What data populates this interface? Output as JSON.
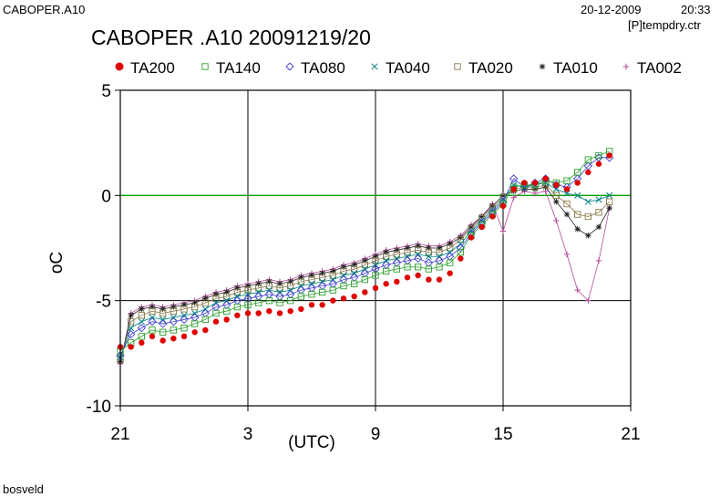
{
  "header": {
    "file_name": "CABOPER.A10",
    "date": "20-12-2009",
    "time": "20:33",
    "product": "[P]tempdry.ctr"
  },
  "footer": {
    "station": "bosveld"
  },
  "chart_data": {
    "type": "line",
    "title": "CABOPER .A10 20091219/20",
    "xlabel": "(UTC)",
    "ylabel": "oC",
    "x_ticks": [
      "21",
      "3",
      "9",
      "15",
      "21"
    ],
    "y_ticks": [
      "5",
      "0",
      "-5",
      "-10"
    ],
    "xlim": [
      0,
      24
    ],
    "ylim": [
      -10,
      5
    ],
    "zero_line_color": "#00a000",
    "grid": true,
    "legend_position": "top",
    "x_hours_after_21utc": [
      0,
      0.5,
      1,
      1.5,
      2,
      2.5,
      3,
      3.5,
      4,
      4.5,
      5,
      5.5,
      6,
      6.5,
      7,
      7.5,
      8,
      8.5,
      9,
      9.5,
      10,
      10.5,
      11,
      11.5,
      12,
      12.5,
      13,
      13.5,
      14,
      14.5,
      15,
      15.5,
      16,
      16.5,
      17,
      17.5,
      18,
      18.5,
      19,
      19.5,
      20,
      20.5,
      21,
      21.5,
      22,
      22.5,
      23
    ],
    "series": [
      {
        "name": "TA200",
        "marker": "dot",
        "color": "#e00000",
        "values": [
          -7.2,
          -7.2,
          -7.0,
          -6.7,
          -6.9,
          -6.8,
          -6.7,
          -6.5,
          -6.4,
          -6.0,
          -5.9,
          -5.7,
          -5.6,
          -5.6,
          -5.5,
          -5.6,
          -5.5,
          -5.4,
          -5.2,
          -5.2,
          -5.0,
          -4.9,
          -4.8,
          -4.6,
          -4.4,
          -4.2,
          -4.1,
          -3.9,
          -3.8,
          -4.0,
          -4.0,
          -3.7,
          -3.0,
          -2.0,
          -1.5,
          -1.0,
          -0.5,
          0.3,
          0.6,
          0.6,
          0.8,
          0.5,
          0.3,
          0.6,
          1.1,
          1.5,
          1.9
        ]
      },
      {
        "name": "TA140",
        "marker": "square",
        "color": "#2ca02c",
        "values": [
          -7.4,
          -7.0,
          -6.7,
          -6.4,
          -6.5,
          -6.4,
          -6.3,
          -6.1,
          -5.9,
          -5.6,
          -5.5,
          -5.3,
          -5.2,
          -5.1,
          -5.0,
          -5.1,
          -5.0,
          -4.8,
          -4.7,
          -4.6,
          -4.5,
          -4.3,
          -4.2,
          -4.0,
          -3.8,
          -3.6,
          -3.5,
          -3.4,
          -3.4,
          -3.5,
          -3.4,
          -3.2,
          -2.7,
          -1.9,
          -1.4,
          -0.9,
          -0.4,
          0.4,
          0.5,
          0.5,
          0.7,
          0.6,
          0.7,
          1.1,
          1.7,
          1.9,
          2.1
        ]
      },
      {
        "name": "TA080",
        "marker": "diamond",
        "color": "#4040d0",
        "values": [
          -7.6,
          -6.6,
          -6.3,
          -6.0,
          -6.1,
          -6.0,
          -5.9,
          -5.8,
          -5.6,
          -5.3,
          -5.2,
          -5.0,
          -4.9,
          -4.8,
          -4.7,
          -4.8,
          -4.7,
          -4.5,
          -4.4,
          -4.3,
          -4.2,
          -4.0,
          -3.9,
          -3.7,
          -3.5,
          -3.3,
          -3.2,
          -3.1,
          -3.0,
          -3.2,
          -3.1,
          -2.9,
          -2.5,
          -1.8,
          -1.3,
          -0.8,
          -0.3,
          0.8,
          0.4,
          0.6,
          0.8,
          0.5,
          0.4,
          0.8,
          1.4,
          1.8,
          1.8
        ]
      },
      {
        "name": "TA040",
        "marker": "x",
        "color": "#008080",
        "values": [
          -7.7,
          -6.3,
          -6.0,
          -5.8,
          -5.9,
          -5.8,
          -5.7,
          -5.6,
          -5.4,
          -5.1,
          -5.0,
          -4.8,
          -4.7,
          -4.6,
          -4.5,
          -4.6,
          -4.5,
          -4.3,
          -4.2,
          -4.1,
          -4.0,
          -3.8,
          -3.7,
          -3.5,
          -3.3,
          -3.1,
          -3.0,
          -2.9,
          -2.8,
          -2.9,
          -2.9,
          -2.7,
          -2.3,
          -1.7,
          -1.2,
          -0.7,
          -0.2,
          0.5,
          0.4,
          0.5,
          0.6,
          0.3,
          0.1,
          0.0,
          -0.3,
          -0.2,
          0.0
        ]
      },
      {
        "name": "TA020",
        "marker": "square",
        "color": "#8b7a4a",
        "values": [
          -7.8,
          -6.0,
          -5.7,
          -5.5,
          -5.6,
          -5.5,
          -5.4,
          -5.3,
          -5.1,
          -4.9,
          -4.8,
          -4.6,
          -4.5,
          -4.4,
          -4.3,
          -4.4,
          -4.3,
          -4.1,
          -4.0,
          -3.9,
          -3.8,
          -3.6,
          -3.5,
          -3.3,
          -3.1,
          -2.9,
          -2.8,
          -2.7,
          -2.6,
          -2.7,
          -2.7,
          -2.5,
          -2.1,
          -1.6,
          -1.1,
          -0.6,
          -0.1,
          0.3,
          0.4,
          0.4,
          0.5,
          0.0,
          -0.4,
          -0.9,
          -1.0,
          -0.8,
          -0.3
        ]
      },
      {
        "name": "TA010",
        "marker": "star",
        "color": "#202020",
        "values": [
          -7.9,
          -5.7,
          -5.4,
          -5.3,
          -5.4,
          -5.3,
          -5.2,
          -5.1,
          -4.9,
          -4.7,
          -4.6,
          -4.4,
          -4.3,
          -4.2,
          -4.1,
          -4.2,
          -4.1,
          -3.9,
          -3.8,
          -3.7,
          -3.6,
          -3.4,
          -3.3,
          -3.1,
          -2.9,
          -2.7,
          -2.6,
          -2.5,
          -2.4,
          -2.5,
          -2.5,
          -2.3,
          -2.0,
          -1.5,
          -1.0,
          -0.5,
          0.0,
          0.2,
          0.3,
          0.3,
          0.4,
          -0.3,
          -0.9,
          -1.6,
          -1.9,
          -1.5,
          -0.6
        ]
      },
      {
        "name": "TA002",
        "marker": "plus",
        "color": "#b04a9a",
        "values": [
          -8.0,
          -5.6,
          -5.3,
          -5.2,
          -5.3,
          -5.2,
          -5.1,
          -5.0,
          -4.8,
          -4.6,
          -4.5,
          -4.3,
          -4.2,
          -4.1,
          -4.0,
          -4.1,
          -4.0,
          -3.8,
          -3.7,
          -3.6,
          -3.5,
          -3.3,
          -3.2,
          -3.0,
          -2.8,
          -2.6,
          -2.5,
          -2.4,
          -2.3,
          -2.4,
          -2.4,
          -2.2,
          -1.9,
          -1.4,
          -1.0,
          -0.4,
          -1.7,
          -0.1,
          0.2,
          0.1,
          0.2,
          -1.2,
          -2.8,
          -4.5,
          -5.0,
          -3.1,
          -0.6
        ]
      }
    ]
  }
}
